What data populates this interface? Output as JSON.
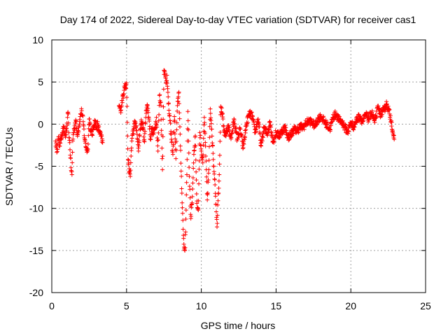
{
  "chart_data": {
    "type": "scatter",
    "title": "Day 174 of 2022, Sidereal Day-to-day VTEC variation (SDTVAR) for receiver cas1",
    "xlabel": "GPS time / hours",
    "ylabel": "SDTVAR / TECUs",
    "xlim": [
      0,
      25
    ],
    "ylim": [
      -20,
      10
    ],
    "xticks": [
      0,
      5,
      10,
      15,
      20,
      25
    ],
    "yticks": [
      -20,
      -15,
      -10,
      -5,
      0,
      5,
      10
    ],
    "grid": true,
    "marker": "+",
    "series_color": "#ff0000",
    "series": [
      {
        "name": "SDTVAR",
        "x": [
          0.25,
          0.3,
          0.35,
          0.4,
          0.45,
          0.5,
          0.55,
          0.6,
          0.7,
          0.8,
          0.9,
          1.0,
          1.05,
          1.1,
          1.15,
          1.2,
          1.25,
          1.3,
          1.35,
          1.4,
          1.45,
          1.5,
          1.6,
          1.7,
          1.8,
          1.9,
          2.0,
          2.1,
          2.2,
          2.3,
          2.4,
          2.5,
          2.55,
          2.6,
          2.7,
          2.8,
          2.9,
          3.0,
          3.05,
          3.1,
          3.2,
          3.4,
          4.5,
          4.6,
          4.7,
          4.8,
          4.85,
          4.9,
          4.95,
          5.0,
          5.05,
          5.1,
          5.2,
          5.25,
          5.3,
          5.35,
          5.4,
          5.5,
          5.55,
          5.6,
          5.7,
          5.8,
          5.9,
          6.0,
          6.1,
          6.2,
          6.3,
          6.4,
          6.5,
          6.6,
          6.7,
          6.8,
          6.9,
          7.0,
          7.1,
          7.2,
          7.3,
          7.4,
          7.5,
          7.6,
          7.65,
          7.7,
          7.75,
          7.8,
          7.9,
          8.0,
          8.1,
          8.2,
          8.3,
          8.4,
          8.5,
          8.6,
          8.7,
          8.8,
          8.85,
          8.9,
          8.95,
          9.0,
          9.05,
          9.1,
          9.2,
          9.3,
          9.4,
          9.5,
          9.6,
          9.7,
          9.8,
          9.9,
          10.0,
          10.1,
          10.2,
          10.3,
          10.4,
          10.5,
          10.6,
          10.7,
          10.8,
          10.9,
          11.0,
          11.05,
          11.1,
          11.2,
          11.3,
          11.4,
          11.5,
          11.6,
          11.8,
          12.0,
          12.2,
          12.4,
          12.6,
          12.8,
          13.0,
          13.2,
          13.4,
          13.6,
          13.8,
          14.0,
          14.2,
          14.4,
          14.6,
          14.8,
          15.0,
          15.2,
          15.4,
          15.6,
          15.8,
          16.0,
          16.2,
          16.4,
          16.6,
          16.8,
          17.0,
          17.2,
          17.4,
          17.6,
          17.8,
          18.0,
          18.2,
          18.4,
          18.6,
          18.8,
          19.0,
          19.2,
          19.4,
          19.6,
          19.8,
          20.0,
          20.2,
          20.4,
          20.6,
          20.8,
          21.0,
          21.2,
          21.4,
          21.6,
          21.8,
          22.0,
          22.2,
          22.4,
          22.6,
          22.7,
          22.8,
          22.85,
          22.9
        ],
        "y": [
          -2.0,
          -2.8,
          -3.0,
          -2.4,
          -1.5,
          -2.6,
          -2.2,
          -1.8,
          -1.0,
          -0.5,
          -1.4,
          -0.8,
          0.8,
          1.2,
          -1.6,
          -2.2,
          -4.0,
          -5.5,
          -6.0,
          -2.0,
          -1.0,
          -0.6,
          0.5,
          -1.2,
          -0.4,
          0.9,
          1.6,
          0.3,
          -1.8,
          -2.8,
          -3.2,
          0.6,
          0.2,
          -0.8,
          -1.2,
          -0.2,
          0.4,
          -0.6,
          0.1,
          -0.4,
          -0.9,
          -2.2,
          2.2,
          1.6,
          2.8,
          3.6,
          4.5,
          4.8,
          4.2,
          4.9,
          0.2,
          -4.2,
          -5.8,
          -6.2,
          -3.8,
          -2.0,
          -1.2,
          -0.5,
          0.3,
          0.1,
          -1.2,
          -3.2,
          -0.6,
          0.3,
          -0.4,
          -2.1,
          1.6,
          2.2,
          0.6,
          -1.8,
          -0.6,
          -1.2,
          -0.4,
          0.8,
          -3.2,
          3.4,
          2.2,
          -5.4,
          6.4,
          5.6,
          4.9,
          5.8,
          4.2,
          2.4,
          0.4,
          -1.8,
          -3.6,
          0.9,
          -4.1,
          2.2,
          3.8,
          -2.6,
          -8.2,
          -13.2,
          -14.6,
          -15.0,
          -12.8,
          -8.4,
          -4.2,
          1.5,
          -6.2,
          -11.2,
          -8.6,
          -3.6,
          -1.4,
          -9.4,
          -10.2,
          -1.0,
          -3.2,
          -4.6,
          0.8,
          -3.8,
          -9.0,
          -5.4,
          1.8,
          -0.6,
          -4.2,
          -6.6,
          -10.4,
          -12.2,
          -9.6,
          -6.0,
          2.1,
          1.2,
          -0.8,
          -1.4,
          -0.3,
          -1.6,
          0.5,
          -1.8,
          -0.6,
          -2.8,
          -0.2,
          1.2,
          1.0,
          -1.0,
          0.6,
          -2.6,
          -0.4,
          -1.2,
          0.2,
          -2.1,
          -1.0,
          -1.4,
          -0.8,
          -0.4,
          -1.6,
          -1.2,
          -0.6,
          -0.8,
          -0.3,
          -0.4,
          0.1,
          0.4,
          0.2,
          -0.2,
          0.6,
          0.9,
          0.4,
          -0.1,
          -0.6,
          0.8,
          1.2,
          0.5,
          0.3,
          -0.4,
          -0.9,
          0.2,
          -0.3,
          0.6,
          0.9,
          0.3,
          1.1,
          0.6,
          1.4,
          0.2,
          1.9,
          1.2,
          1.6,
          2.4,
          1.2,
          0.4,
          -0.8,
          -1.4,
          -1.8
        ],
        "x_range": [
          0.25,
          22.9
        ],
        "y_range": [
          -15.2,
          6.5
        ]
      }
    ]
  }
}
